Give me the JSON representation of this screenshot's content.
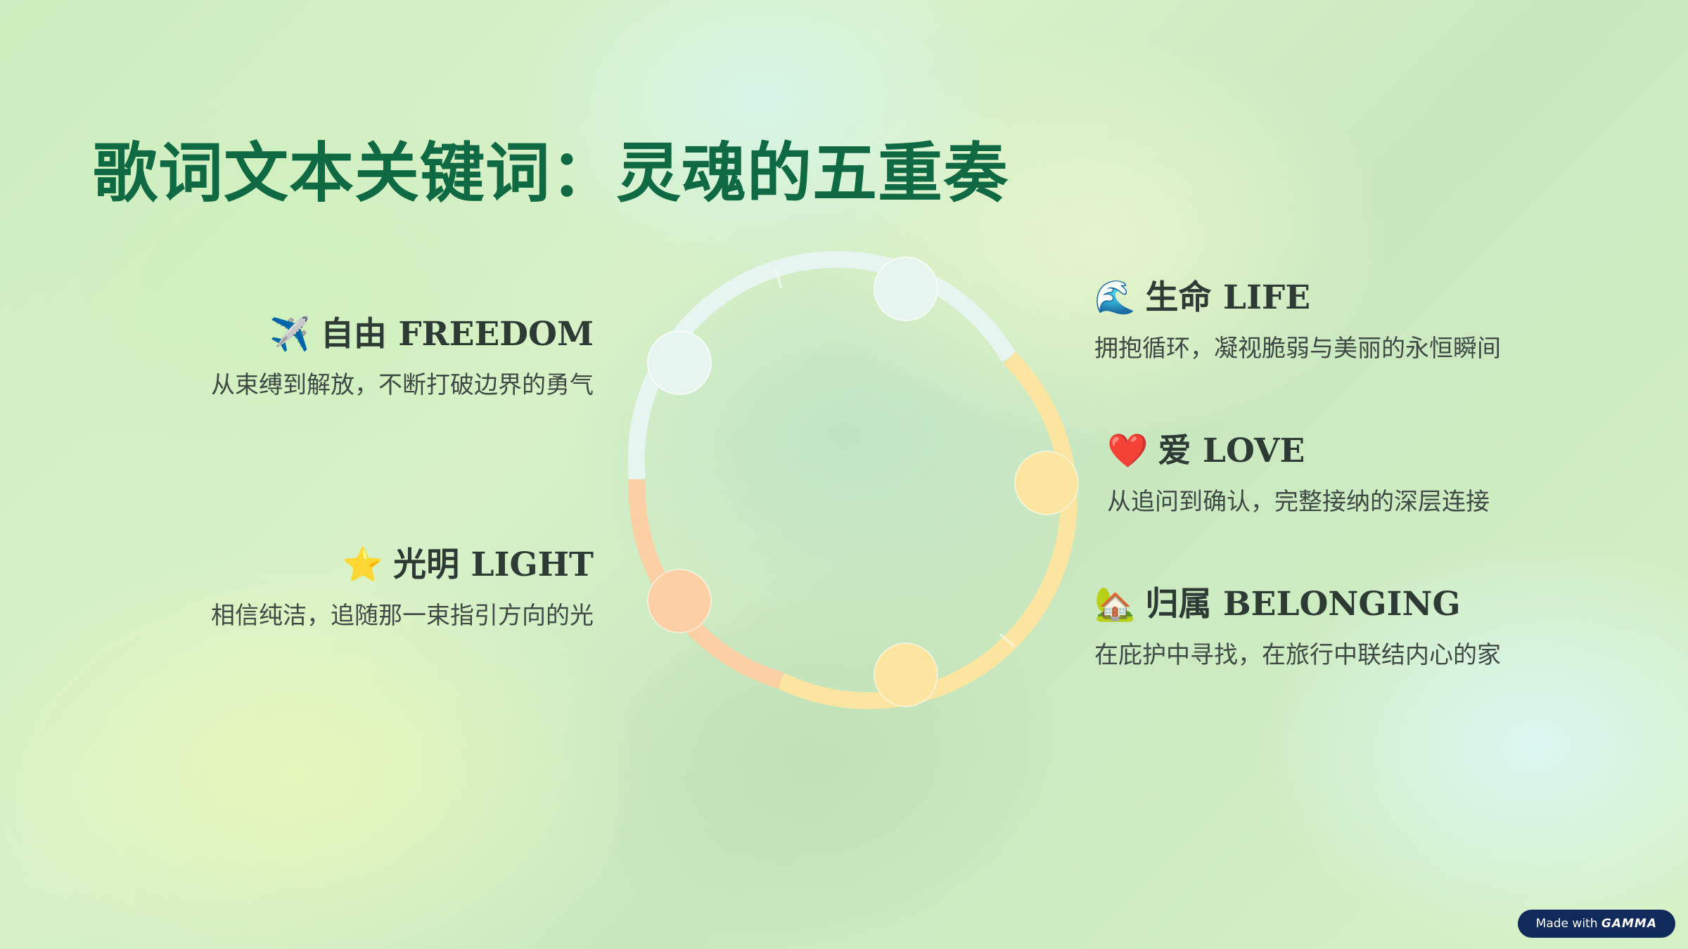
{
  "title": "歌词文本关键词：灵魂的五重奏",
  "items": {
    "freedom": {
      "emoji": "✈️",
      "heading": "自由 FREEDOM",
      "desc": "从束缚到解放，不断打破边界的勇气"
    },
    "light": {
      "emoji": "⭐",
      "heading": "光明 LIGHT",
      "desc": "相信纯洁，追随那一束指引方向的光"
    },
    "life": {
      "emoji": "🌊",
      "heading": "生命 LIFE",
      "desc": "拥抱循环，凝视脆弱与美丽的永恒瞬间"
    },
    "love": {
      "emoji": "❤️",
      "heading": "爱 LOVE",
      "desc": "从追问到确认，完整接纳的深层连接"
    },
    "belonging": {
      "emoji": "🏡",
      "heading": "归属 BELONGING",
      "desc": "在庇护中寻找，在旅行中联结内心的家"
    }
  },
  "colors": {
    "title": "#0f6a44",
    "ring_mint": "#e6f5ef",
    "ring_yellow": "#fce5a0",
    "ring_peach": "#fdcfa5"
  },
  "badge": {
    "prefix": "Made with",
    "brand": "GAMMA"
  }
}
